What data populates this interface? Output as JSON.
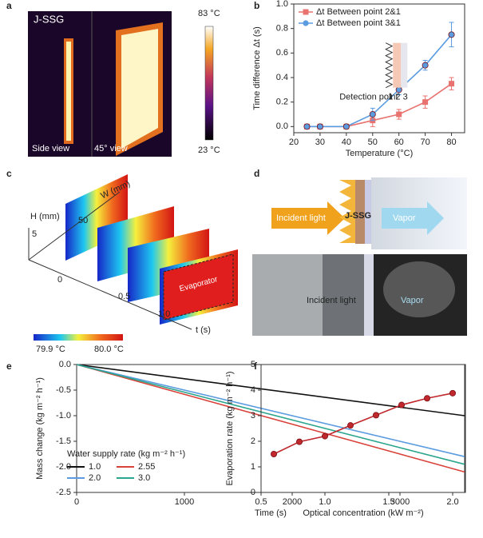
{
  "panels": {
    "a": {
      "label": "a",
      "sample": "J-SSG",
      "views": [
        "Side view",
        "45° view"
      ],
      "scale_max": "83 °C",
      "scale_min": "23 °C"
    },
    "c": {
      "label": "c",
      "h_axis": "H (mm)",
      "h_tick": "5",
      "w_axis": "W (mm)",
      "w_tick": "50",
      "t_ticks": [
        "0",
        "0.5",
        "1.0"
      ],
      "t_axis": "t (s)",
      "evaporator": "Evaporator",
      "scale_min": "79.9 °C",
      "scale_max": "80.0 °C"
    },
    "d": {
      "label": "d",
      "incident": "Incident light",
      "sample": "J-SSG",
      "vapor": "Vapor",
      "photo_incident": "Incident light",
      "photo_vapor": "Vapor"
    }
  },
  "chart_data": [
    {
      "type": "line",
      "label": "b",
      "x": [
        25,
        30,
        40,
        50,
        60,
        70,
        80
      ],
      "series": [
        {
          "name": "Δt Between point 2&1",
          "color": "#e8726f",
          "values": [
            0,
            0,
            0,
            0.05,
            0.1,
            0.2,
            0.35
          ],
          "errors": [
            0.01,
            0.01,
            0.01,
            0.05,
            0.04,
            0.05,
            0.05
          ]
        },
        {
          "name": "Δt Between point 3&1",
          "color": "#5b9be0",
          "values": [
            0,
            0,
            0,
            0.1,
            0.3,
            0.5,
            0.75
          ],
          "errors": [
            0.01,
            0.01,
            0.01,
            0.05,
            0.04,
            0.04,
            0.1
          ]
        }
      ],
      "xlim": [
        20,
        85
      ],
      "xticks": [
        20,
        30,
        40,
        50,
        60,
        70,
        80
      ],
      "ylim": [
        -0.05,
        1.0
      ],
      "yticks": [
        {
          "value": 0,
          "label": "0.0"
        },
        0.2,
        0.4,
        0.6,
        0.8,
        {
          "value": 1,
          "label": "1.0"
        }
      ],
      "x_label": "Temperature (°C)",
      "y_label": "Time difference Δt (s)",
      "legend": "top-left",
      "annotations": [
        "Detection point",
        "1 2 3"
      ]
    },
    {
      "type": "line",
      "label": "e",
      "x": [
        0,
        3600
      ],
      "series": [
        {
          "name": "1.0",
          "color": "#111111",
          "values": [
            0,
            -1.0
          ]
        },
        {
          "name": "2.55",
          "color": "#d9423a",
          "values": [
            0,
            -2.1
          ]
        },
        {
          "name": "2.0",
          "color": "#5b9be0",
          "values": [
            0,
            -1.8
          ]
        },
        {
          "name": "3.0",
          "color": "#2ca58d",
          "values": [
            0,
            -1.95
          ]
        }
      ],
      "xlim": [
        0,
        3600
      ],
      "xticks": [
        0,
        1000,
        2000,
        3000
      ],
      "ylim": [
        -2.5,
        0
      ],
      "yticks": [
        {
          "value": 0,
          "label": "0.0"
        },
        -0.5,
        {
          "value": -1,
          "label": "-1.0"
        },
        -1.5,
        {
          "value": -2,
          "label": "-2.0"
        },
        -2.5
      ],
      "x_label": "Time (s)",
      "y_label": "Mass change (kg m⁻² h⁻¹)",
      "legend": "bottom-left",
      "legend_title": "Water supply rate (kg m⁻² h⁻¹)"
    },
    {
      "type": "line",
      "label": "f",
      "x": [
        0.6,
        0.8,
        1.0,
        1.2,
        1.4,
        1.6,
        1.8,
        2.0
      ],
      "series": [
        {
          "color": "#c0282d",
          "values": [
            1.5,
            1.98,
            2.2,
            2.62,
            3.02,
            3.42,
            3.68,
            3.88
          ]
        }
      ],
      "xlim": [
        0.5,
        2.1
      ],
      "xticks": [
        0.5,
        {
          "value": 1,
          "label": "1.0"
        },
        1.5,
        {
          "value": 2,
          "label": "2.0"
        }
      ],
      "ylim": [
        0,
        5
      ],
      "yticks": [
        0,
        1,
        2,
        3,
        4,
        5
      ],
      "x_label": "Optical concentration (kW m⁻²)",
      "y_label": "Evaporation rate (kg m⁻² h⁻¹)"
    }
  ]
}
